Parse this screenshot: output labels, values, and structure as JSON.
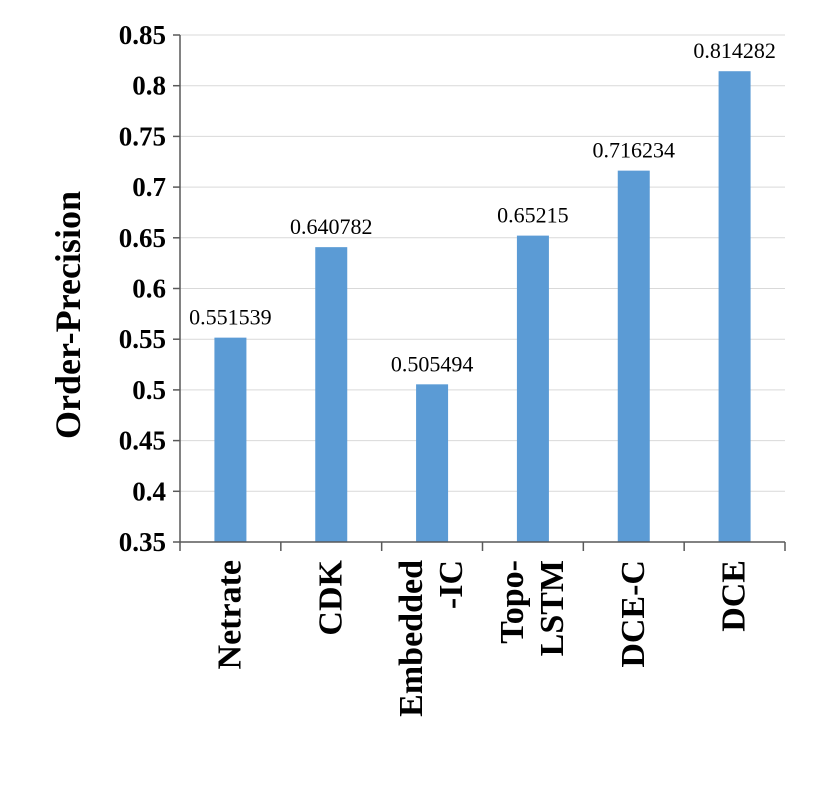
{
  "chart_data": {
    "type": "bar",
    "title": "",
    "xlabel": "",
    "ylabel": "Order-Precision",
    "categories": [
      [
        "Netrate"
      ],
      [
        "CDK"
      ],
      [
        "Embedded",
        "-IC"
      ],
      [
        "Topo-",
        "LSTM"
      ],
      [
        "DCE-C"
      ],
      [
        "DCE"
      ]
    ],
    "values": [
      0.551539,
      0.640782,
      0.505494,
      0.65215,
      0.716234,
      0.814282
    ],
    "data_labels": [
      "0.551539",
      "0.640782",
      "0.505494",
      "0.65215",
      "0.716234",
      "0.814282"
    ],
    "yticks": [
      "0.35",
      "0.4",
      "0.45",
      "0.5",
      "0.55",
      "0.6",
      "0.65",
      "0.7",
      "0.75",
      "0.8",
      "0.85"
    ],
    "ylim": [
      0.35,
      0.85
    ],
    "grid": true,
    "legend": "none",
    "bar_color": "#5b9bd5"
  }
}
